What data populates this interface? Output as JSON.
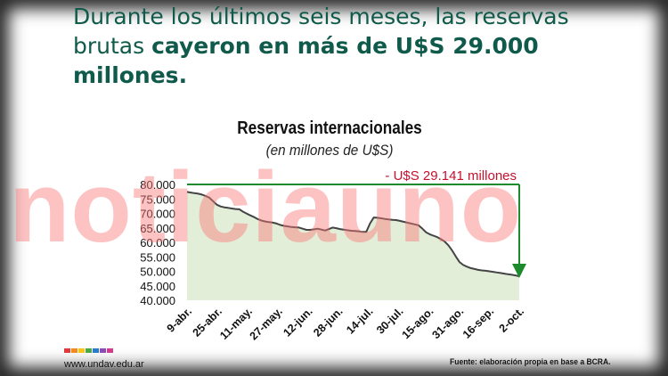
{
  "headline": {
    "part1": "Durante los últimos seis meses, las reservas brutas ",
    "bold": "cayeron en más de U$S 29.000 millones."
  },
  "watermark": "noticiauno",
  "footer": {
    "site": "www.undav.edu.ar",
    "source": "Fuente: elaboración propia en base a BCRA.",
    "logo_colors": [
      "#e03a3a",
      "#f08a1c",
      "#f5c518",
      "#4aa84a",
      "#2a7bc8",
      "#8a4ab8",
      "#d23a8a"
    ]
  },
  "colors": {
    "line": "#444444",
    "area": "#e3eed9",
    "arrow": "#1e8a2e",
    "annotation": "#c8102e"
  },
  "chart_data": {
    "type": "area",
    "title": "Reservas internacionales",
    "subtitle": "(en millones de U$S)",
    "annotation": "- U$S 29.141 millones",
    "x_tick_labels": [
      "9-abr.",
      "25-abr.",
      "11-may.",
      "27-may.",
      "12-jun.",
      "28-jun.",
      "14-jul.",
      "30-jul.",
      "15-ago.",
      "31-ago.",
      "16-sep.",
      "2-oct."
    ],
    "ylim": [
      40000,
      80000
    ],
    "y_ticks": [
      80000,
      75000,
      70000,
      65000,
      60000,
      55000,
      50000,
      45000,
      40000
    ],
    "y_tick_labels": [
      "80.000",
      "75.000",
      "70.000",
      "65.000",
      "60.000",
      "55.000",
      "50.000",
      "45.000",
      "40.000"
    ],
    "grid": false,
    "series": [
      {
        "x": [
          "9-abr.",
          "11-abr.",
          "13-abr.",
          "15-abr.",
          "17-abr.",
          "19-abr.",
          "21-abr.",
          "23-abr.",
          "25-abr.",
          "27-abr.",
          "29-abr.",
          "1-may.",
          "3-may.",
          "5-may.",
          "7-may.",
          "9-may.",
          "11-may.",
          "13-may.",
          "15-may.",
          "17-may.",
          "19-may.",
          "21-may.",
          "23-may.",
          "25-may.",
          "27-may.",
          "29-may.",
          "31-may.",
          "2-jun.",
          "4-jun.",
          "6-jun.",
          "8-jun.",
          "10-jun.",
          "12-jun.",
          "14-jun.",
          "16-jun.",
          "18-jun.",
          "20-jun.",
          "22-jun.",
          "24-jun.",
          "26-jun.",
          "28-jun.",
          "30-jun.",
          "2-jul.",
          "4-jul.",
          "6-jul.",
          "8-jul.",
          "10-jul.",
          "12-jul.",
          "14-jul.",
          "15-jul.",
          "16-jul.",
          "18-jul.",
          "20-jul.",
          "22-jul.",
          "24-jul.",
          "26-jul.",
          "28-jul.",
          "30-jul.",
          "1-ago.",
          "3-ago.",
          "5-ago.",
          "7-ago.",
          "9-ago.",
          "11-ago.",
          "13-ago.",
          "15-ago.",
          "17-ago.",
          "19-ago.",
          "21-ago.",
          "23-ago.",
          "25-ago.",
          "27-ago.",
          "29-ago.",
          "31-ago.",
          "2-sep.",
          "4-sep.",
          "6-sep.",
          "8-sep.",
          "10-sep.",
          "12-sep.",
          "14-sep.",
          "16-sep.",
          "18-sep.",
          "20-sep.",
          "22-sep.",
          "24-sep.",
          "26-sep.",
          "28-sep.",
          "30-sep.",
          "2-oct."
        ],
        "values": [
          77400,
          77200,
          77000,
          76800,
          76500,
          76000,
          75400,
          74200,
          73000,
          72400,
          72100,
          71900,
          71700,
          71500,
          71400,
          70600,
          69900,
          69300,
          68700,
          68000,
          67500,
          67200,
          67000,
          66800,
          66500,
          66000,
          65700,
          65500,
          65300,
          65200,
          65100,
          64700,
          64300,
          64300,
          64500,
          64700,
          64400,
          64100,
          64600,
          65100,
          64900,
          64600,
          64400,
          64200,
          64000,
          63900,
          63800,
          63600,
          63600,
          66500,
          68600,
          68500,
          68300,
          68100,
          67900,
          67800,
          67700,
          67400,
          67100,
          66800,
          66500,
          66200,
          65900,
          64800,
          63500,
          62800,
          62300,
          61800,
          61100,
          60300,
          59000,
          57200,
          55100,
          53200,
          52200,
          51600,
          51100,
          50800,
          50500,
          50300,
          50200,
          50000,
          49800,
          49600,
          49400,
          49200,
          49000,
          48800,
          48600,
          48300
        ]
      }
    ]
  }
}
